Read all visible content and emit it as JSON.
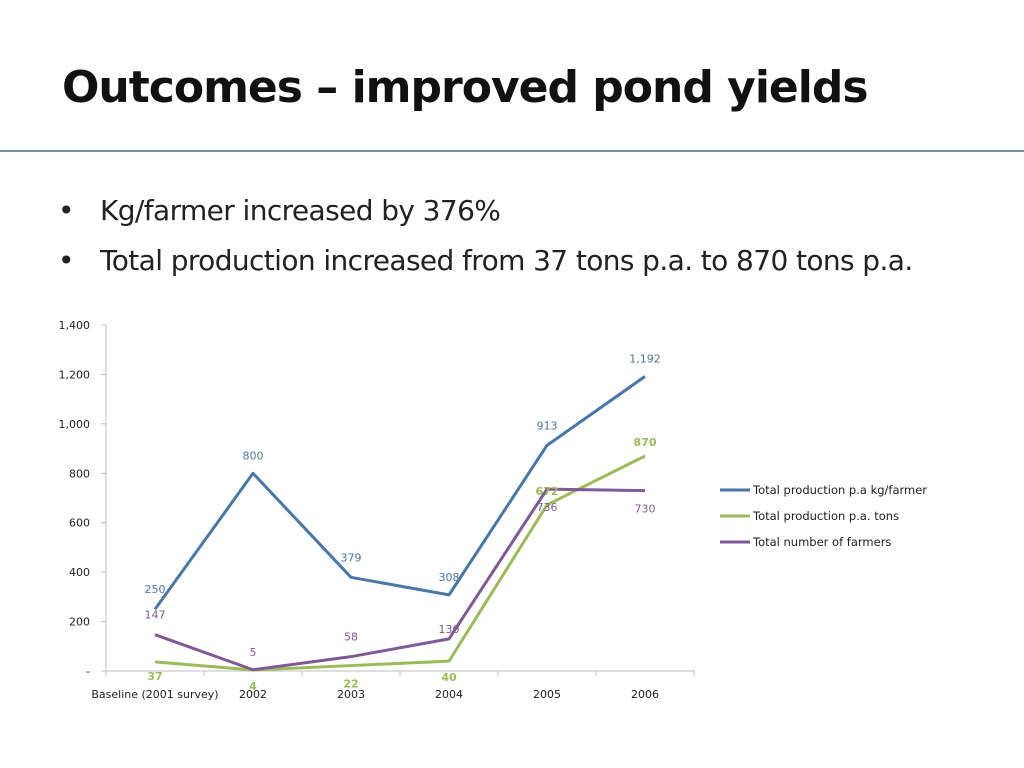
{
  "slide": {
    "title": "Outcomes – improved pond yields",
    "bullets": [
      "Kg/farmer increased by 376%",
      "Total production increased from 37 tons p.a. to 870 tons p.a."
    ]
  },
  "chart_data": {
    "type": "line",
    "categories": [
      "Baseline (2001 survey)",
      "2002",
      "2003",
      "2004",
      "2005",
      "2006"
    ],
    "series": [
      {
        "name": "Total production p.a kg/farmer",
        "values": [
          250,
          800,
          379,
          308,
          913,
          1192
        ],
        "labels": [
          "250",
          "800",
          "379",
          "308",
          "913",
          "1,192"
        ],
        "color": "#4a76a8"
      },
      {
        "name": "Total production p.a. tons",
        "values": [
          37,
          4,
          22,
          40,
          672,
          870
        ],
        "labels": [
          "37",
          "4",
          "22",
          "40",
          "672",
          "870"
        ],
        "color": "#9bbb59"
      },
      {
        "name": "Total number of farmers",
        "values": [
          147,
          5,
          58,
          130,
          736,
          730
        ],
        "labels": [
          "147",
          "5",
          "58",
          "130",
          "736",
          "730"
        ],
        "color": "#7f5a96"
      }
    ],
    "yticks": [
      "-",
      "200",
      "400",
      "600",
      "800",
      "1,000",
      "1,200",
      "1,400"
    ],
    "ylim": [
      0,
      1400
    ],
    "grid": false,
    "legend": "right"
  }
}
